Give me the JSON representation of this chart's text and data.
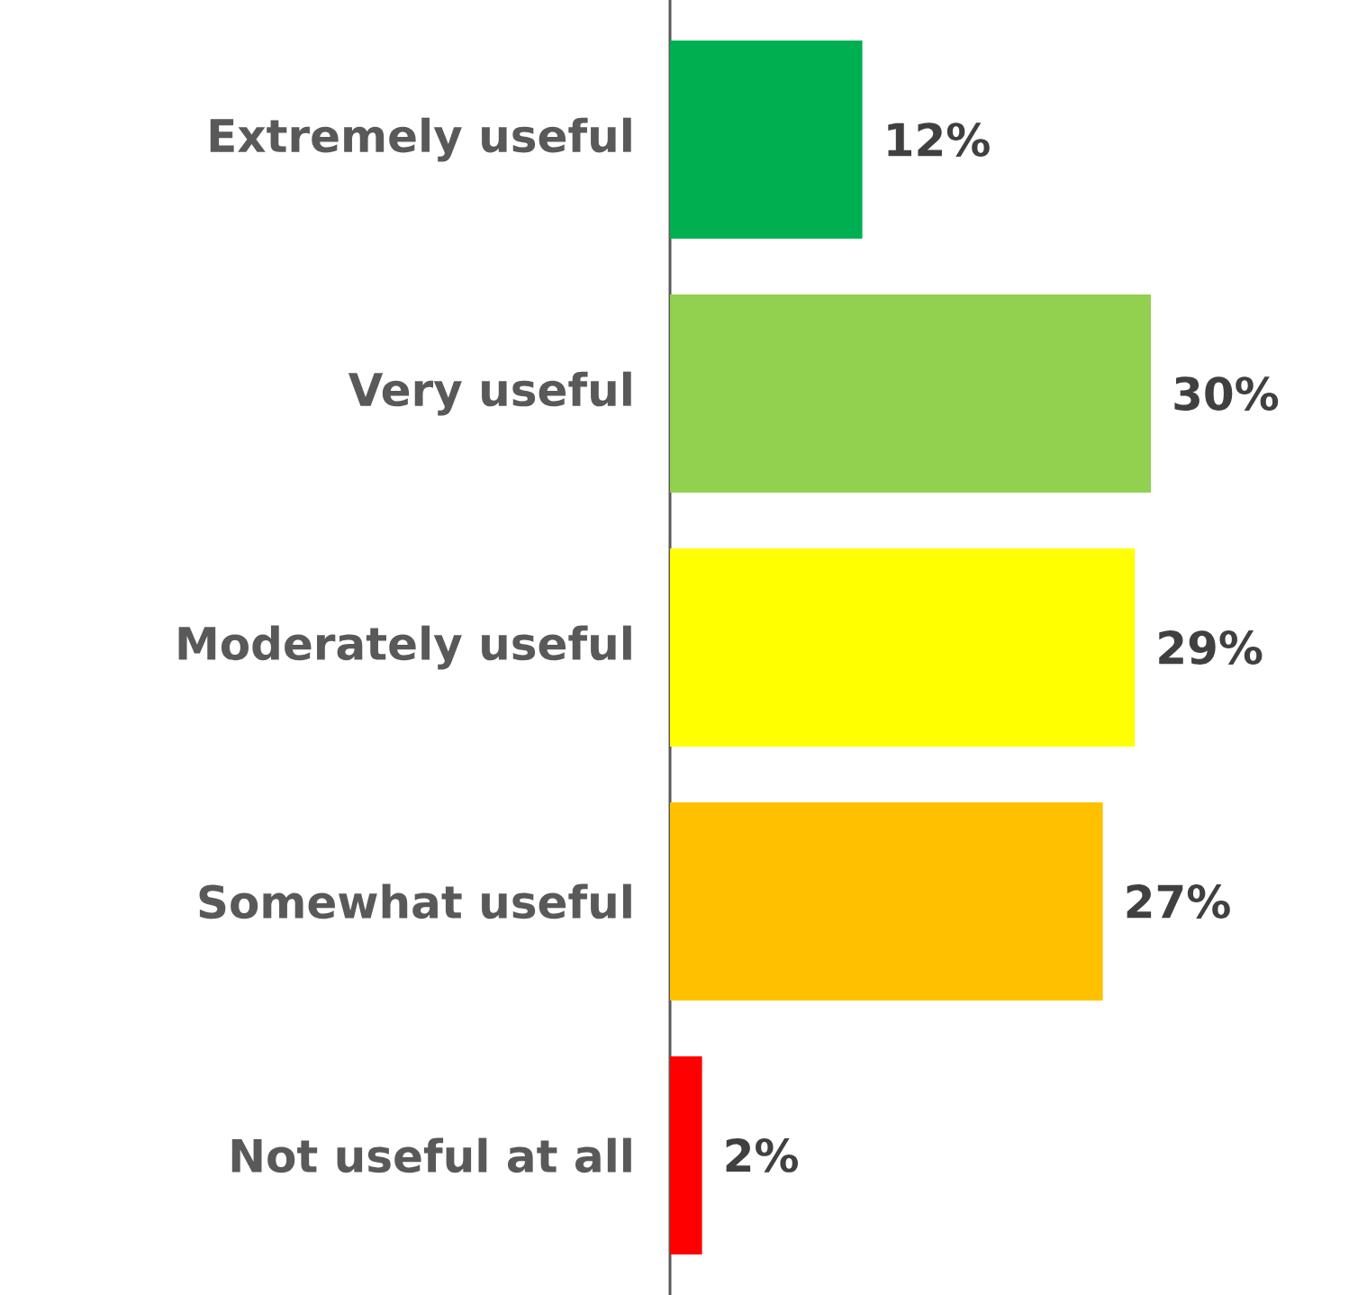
{
  "chart_data": {
    "type": "bar",
    "orientation": "horizontal",
    "categories": [
      "Extremely useful",
      "Very useful",
      "Moderately useful",
      "Somewhat useful",
      "Not useful at all"
    ],
    "values": [
      12,
      30,
      29,
      27,
      2
    ],
    "value_labels": [
      "12%",
      "30%",
      "29%",
      "27%",
      "2%"
    ],
    "colors": [
      "#00b050",
      "#92d050",
      "#ffff00",
      "#ffc000",
      "#ff0000"
    ]
  }
}
